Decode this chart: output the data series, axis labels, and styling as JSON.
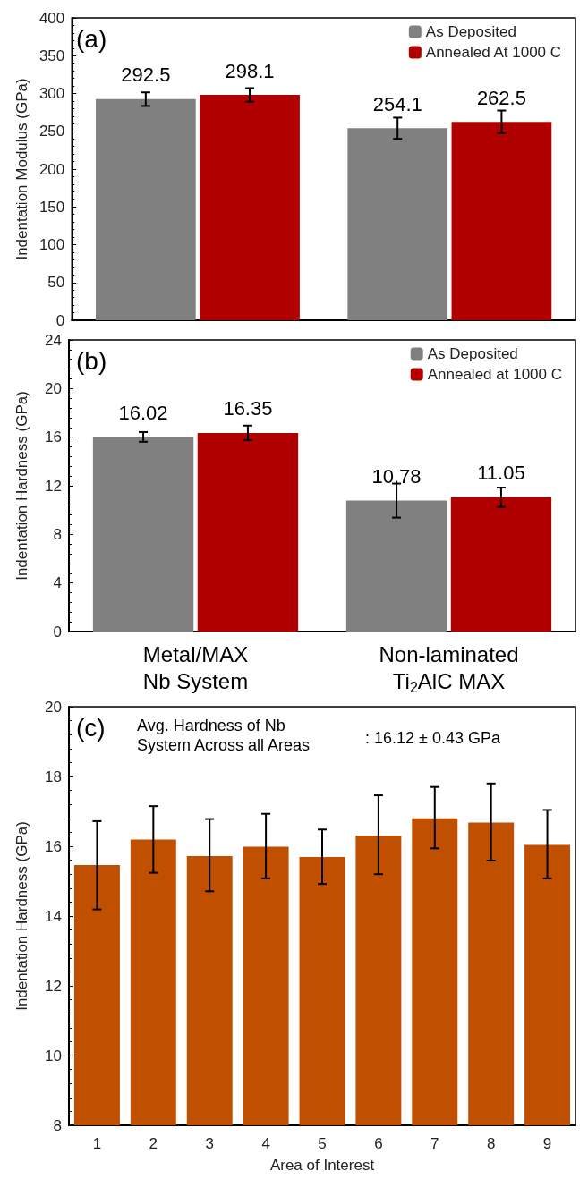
{
  "chart_data": [
    {
      "type": "bar",
      "title": "(a)",
      "ylabel": "Indentation Modulus (GPa)",
      "categories": [
        null,
        null
      ],
      "series": [
        {
          "name": "As Deposited",
          "color": "#808080",
          "values": [
            292.5,
            254.1
          ],
          "errors": [
            9,
            14
          ]
        },
        {
          "name": "Annealed At 1000 C",
          "color": "#b00000",
          "values": [
            298.1,
            262.5
          ],
          "errors": [
            9,
            15
          ]
        }
      ],
      "ylim": [
        0,
        400
      ],
      "yticks": [
        0,
        50,
        100,
        150,
        200,
        250,
        300,
        350,
        400
      ],
      "grid": false,
      "legend": "top right",
      "data_labels": true
    },
    {
      "type": "bar",
      "title": "(b)",
      "ylabel": "Indentation Hardness (GPa)",
      "categories": [
        "Metal/MAX\nNb System",
        "Non-laminated\nTi$_{2}$AlC MAX"
      ],
      "series": [
        {
          "name": "As Deposited",
          "color": "#808080",
          "values": [
            16.02,
            10.78
          ],
          "errors": [
            0.4,
            1.4
          ]
        },
        {
          "name": "Annealed at 1000 C",
          "color": "#b00000",
          "values": [
            16.35,
            11.05
          ],
          "errors": [
            0.6,
            0.8
          ]
        }
      ],
      "ylim": [
        0,
        24
      ],
      "yticks": [
        0,
        4,
        8,
        12,
        16,
        20,
        24
      ],
      "grid": false,
      "legend": "top right",
      "data_labels": true
    },
    {
      "type": "bar",
      "title": "(c)",
      "xlabel": "Area of Interest",
      "ylabel": "Indentation Hardness (GPa)",
      "categories": [
        "1",
        "2",
        "3",
        "4",
        "5",
        "6",
        "7",
        "8",
        "9"
      ],
      "series": [
        {
          "color": "#c05000",
          "values": [
            15.46,
            16.19,
            15.72,
            15.99,
            15.69,
            16.31,
            16.8,
            16.68,
            16.04
          ],
          "errors": [
            [
              14.19,
              16.72
            ],
            [
              15.24,
              17.15
            ],
            [
              14.71,
              16.78
            ],
            [
              15.08,
              16.93
            ],
            [
              14.92,
              16.48
            ],
            [
              15.2,
              17.46
            ],
            [
              15.94,
              17.7
            ],
            [
              15.59,
              17.8
            ],
            [
              15.08,
              17.04
            ]
          ]
        }
      ],
      "ylim": [
        8,
        20
      ],
      "yticks": [
        8,
        10,
        12,
        14,
        16,
        18,
        20
      ],
      "grid": false,
      "legend": false,
      "annotations": [
        "Avg. Hardness of Nb\nSystem Across all Areas",
        ": 16.12 ± 0.43 GPa"
      ]
    }
  ]
}
